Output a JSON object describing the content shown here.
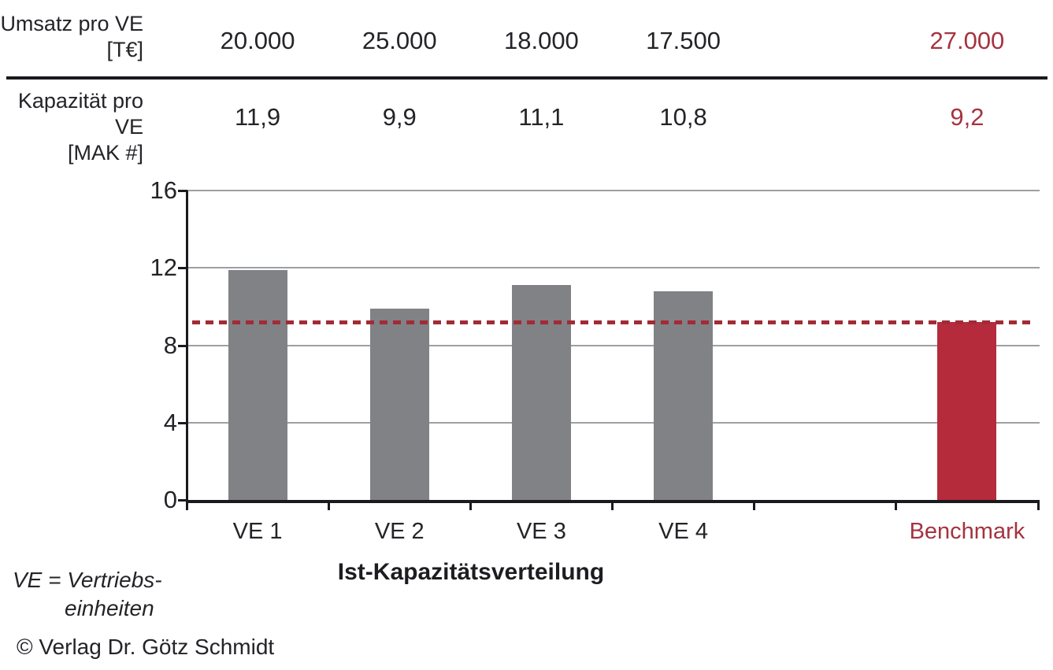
{
  "table": {
    "rows": [
      {
        "label_line1": "Umsatz pro VE",
        "label_line2": "[T€]",
        "values": [
          "20.000",
          "25.000",
          "18.000",
          "17.500"
        ],
        "benchmark": "27.000"
      },
      {
        "label_line1": "Kapazität pro VE",
        "label_line2": "[MAK #]",
        "values": [
          "11,9",
          "9,9",
          "11,1",
          "10,8"
        ],
        "benchmark": "9,2"
      }
    ]
  },
  "chart_data": {
    "type": "bar",
    "title": "Ist-Kapazitätsverteilung",
    "categories": [
      "VE 1",
      "VE 2",
      "VE 3",
      "VE 4",
      "Benchmark"
    ],
    "values": [
      11.9,
      9.9,
      11.1,
      10.8,
      9.2
    ],
    "highlight_category": "Benchmark",
    "benchmark_line_y": 9.2,
    "ylim": [
      0,
      16
    ],
    "yticks": [
      0,
      4,
      8,
      12,
      16
    ],
    "grid": "horizontal gridlines at yticks",
    "legend": "none",
    "xlabel": "",
    "ylabel": ""
  },
  "footnote": {
    "line1": "VE = Vertriebs-",
    "line2": "einheiten"
  },
  "copyright": "© Verlag Dr. Götz Schmidt",
  "colors": {
    "bar_default": "#818286",
    "bar_benchmark": "#B52B3C",
    "benchmark_line": "#A12B36",
    "red_text": "#A5333F",
    "ink": "#242428",
    "grid": "#9da0a2"
  }
}
